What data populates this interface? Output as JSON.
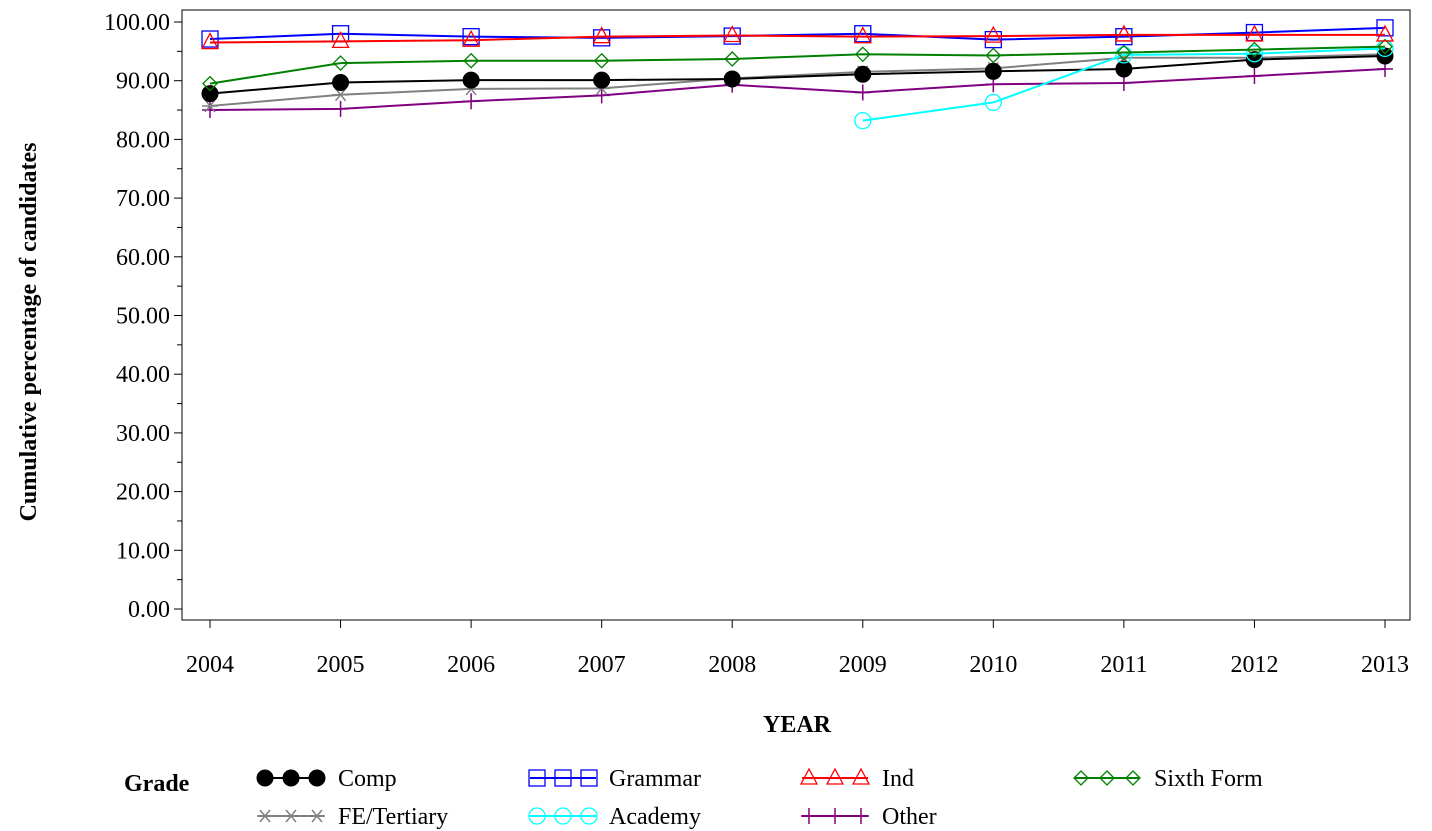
{
  "chart_data": {
    "type": "line",
    "xlabel": "YEAR",
    "ylabel": "Cumulative percentage of candidates",
    "ylim": [
      0,
      100
    ],
    "yticks": [
      "0.00",
      "10.00",
      "20.00",
      "30.00",
      "40.00",
      "50.00",
      "60.00",
      "70.00",
      "80.00",
      "90.00",
      "100.00"
    ],
    "x": [
      2004,
      2005,
      2006,
      2007,
      2008,
      2009,
      2010,
      2011,
      2012,
      2013
    ],
    "legend_title": "Grade",
    "legend_position": "bottom",
    "grid": false,
    "series": [
      {
        "name": "Comp",
        "color": "#000000",
        "marker": "filled-circle",
        "values": [
          87.8,
          89.7,
          90.1,
          90.1,
          90.3,
          91.1,
          91.6,
          92.0,
          93.6,
          94.2
        ]
      },
      {
        "name": "Grammar",
        "color": "#0000ff",
        "marker": "square",
        "values": [
          97.1,
          98.0,
          97.5,
          97.3,
          97.6,
          98.0,
          97.0,
          97.5,
          98.2,
          99.0
        ]
      },
      {
        "name": "Ind",
        "color": "#ff0000",
        "marker": "triangle",
        "values": [
          96.5,
          96.7,
          96.9,
          97.5,
          97.7,
          97.5,
          97.6,
          97.8,
          97.8,
          97.8
        ]
      },
      {
        "name": "Sixth Form",
        "color": "#008000",
        "marker": "diamond",
        "values": [
          89.5,
          93.0,
          93.4,
          93.4,
          93.7,
          94.5,
          94.3,
          94.8,
          95.3,
          95.8
        ]
      },
      {
        "name": "FE/Tertiary",
        "color": "#808080",
        "marker": "asterisk",
        "values": [
          85.7,
          87.6,
          88.6,
          88.7,
          90.4,
          91.5,
          92.1,
          93.9,
          93.9,
          94.5
        ]
      },
      {
        "name": "Academy",
        "color": "#00ffff",
        "marker": "circle",
        "values": [
          null,
          null,
          null,
          null,
          null,
          83.2,
          86.3,
          94.4,
          94.6,
          95.5
        ]
      },
      {
        "name": "Other",
        "color": "#800080",
        "marker": "plus",
        "values": [
          85.0,
          85.2,
          86.5,
          87.5,
          89.3,
          88.0,
          89.4,
          89.6,
          90.8,
          92.0
        ]
      }
    ]
  }
}
